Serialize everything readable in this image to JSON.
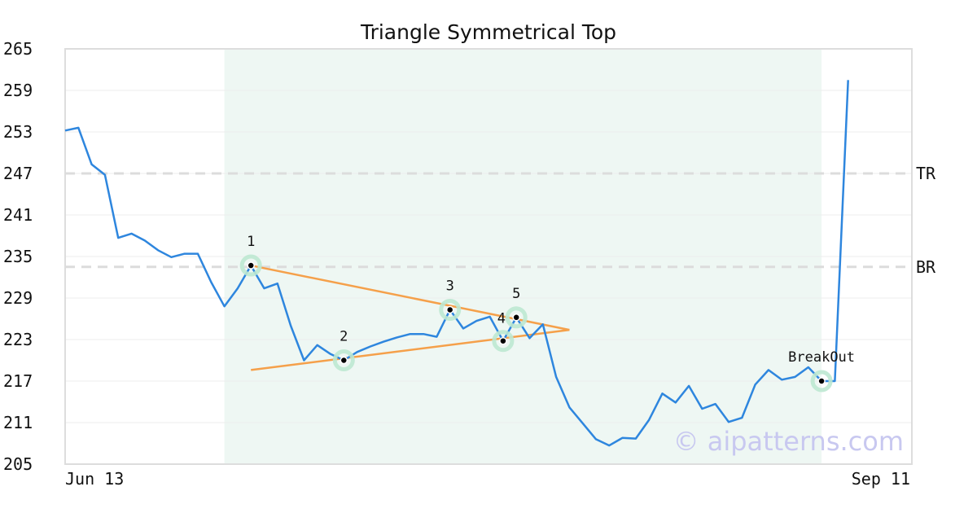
{
  "chart_data": {
    "type": "line",
    "title": "Triangle Symmetrical Top",
    "ylim": [
      205,
      265
    ],
    "yticks": [
      "265",
      "259",
      "253",
      "247",
      "241",
      "235",
      "229",
      "223",
      "217",
      "211",
      "205"
    ],
    "x_labels": [
      "Jun 13",
      "Sep 11"
    ],
    "grid": true,
    "colors": {
      "price": "#2e86de",
      "trendline": "#f5a04a",
      "shade": "#eef7f3",
      "marker_ring": "#bde8d2",
      "level_line": "#dcdcdc",
      "frame": "#dddddd"
    },
    "series": [
      {
        "values": [
          253.2,
          253.6,
          248.3,
          246.8,
          237.7,
          238.3,
          237.3,
          235.9,
          234.9,
          235.4,
          235.4,
          231.3,
          227.8,
          230.4,
          233.7,
          230.4,
          231.1,
          225.0,
          220.0,
          222.2,
          220.9,
          220.0,
          221.2,
          222.0,
          222.7,
          223.3,
          223.8,
          223.8,
          223.4,
          227.3,
          224.6,
          225.7,
          226.3,
          222.8,
          226.2,
          223.2,
          225.2,
          217.6,
          213.2,
          210.9,
          208.6,
          207.7,
          208.8,
          208.7,
          211.4,
          215.2,
          213.9,
          216.3,
          213.0,
          213.7,
          211.1,
          211.7,
          216.5,
          218.6,
          217.2,
          217.6,
          219.0,
          217.0,
          217.0,
          260.5
        ]
      }
    ],
    "shaded_region": {
      "from_index": 12,
      "to_index": 57
    },
    "levels": [
      {
        "label": "TR",
        "value": 247.0
      },
      {
        "label": "BR",
        "value": 233.5
      }
    ],
    "trendlines": [
      {
        "from": {
          "index": 14,
          "value": 233.7
        },
        "to": {
          "index": 38,
          "value": 224.4
        }
      },
      {
        "from": {
          "index": 14,
          "value": 218.6
        },
        "to": {
          "index": 38,
          "value": 224.4
        }
      }
    ],
    "pattern_points": [
      {
        "label": "1",
        "index": 14,
        "value": 233.7
      },
      {
        "label": "2",
        "index": 21,
        "value": 220.0
      },
      {
        "label": "3",
        "index": 29,
        "value": 227.3
      },
      {
        "label": "4",
        "index": 33,
        "value": 222.8
      },
      {
        "label": "5",
        "index": 34,
        "value": 226.2
      },
      {
        "label": "BreakOut",
        "index": 57,
        "value": 217.0
      }
    ],
    "watermark": "© aipatterns.com"
  }
}
